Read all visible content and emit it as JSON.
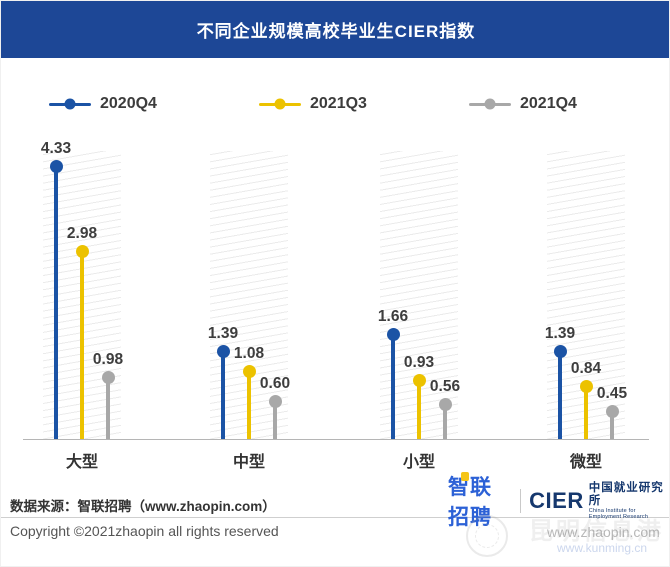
{
  "title_bar": {
    "title": "不同企业规模高校毕业生CIER指数",
    "background": "#1d4796",
    "text_color": "#ffffff"
  },
  "legend": [
    {
      "label": "2020Q4",
      "color": "#1b53a5"
    },
    {
      "label": "2021Q3",
      "color": "#ecc200"
    },
    {
      "label": "2021Q4",
      "color": "#a8a8a8"
    }
  ],
  "chart_data": {
    "type": "bar",
    "variant": "lollipop",
    "title": "不同企业规模高校毕业生CIER指数",
    "categories": [
      "大型",
      "中型",
      "小型",
      "微型"
    ],
    "series": [
      {
        "name": "2020Q4",
        "color": "#1b53a5",
        "values": [
          4.33,
          1.39,
          1.66,
          1.39
        ],
        "labels": [
          "4.33",
          "1.39",
          "1.66",
          "1.39"
        ]
      },
      {
        "name": "2021Q3",
        "color": "#ecc200",
        "values": [
          2.98,
          1.08,
          0.93,
          0.84
        ],
        "labels": [
          "2.98",
          "1.08",
          "0.93",
          "0.84"
        ]
      },
      {
        "name": "2021Q4",
        "color": "#a8a8a8",
        "values": [
          0.98,
          0.6,
          0.56,
          0.45
        ],
        "labels": [
          "0.98",
          "0.60",
          "0.56",
          "0.45"
        ]
      }
    ],
    "xlabel": "",
    "ylabel": "",
    "ylim": [
      0,
      4.6
    ],
    "grid": false,
    "legend_position": "top",
    "value_labels_shown": true,
    "background_hatch_bands": true
  },
  "footer": {
    "source": "数据来源：智联招聘（www.zhaopin.com）",
    "copyright": "Copyright ©2021zhaopin all rights reserved",
    "zhaopin_logo_text": "智联招聘",
    "zhaopin_logo_color": "#2c61d6",
    "zhaopin_accent_color": "#f5c518",
    "cier_logo_text": "CIER",
    "cier_cn": "中国就业研究所",
    "cier_en": "China Institute for Employment Research",
    "cier_color": "#16386e"
  },
  "watermark": {
    "ghost": "昆明信息港",
    "line1": "www.zhaopin.com",
    "line2": "www.kunming.cn"
  }
}
